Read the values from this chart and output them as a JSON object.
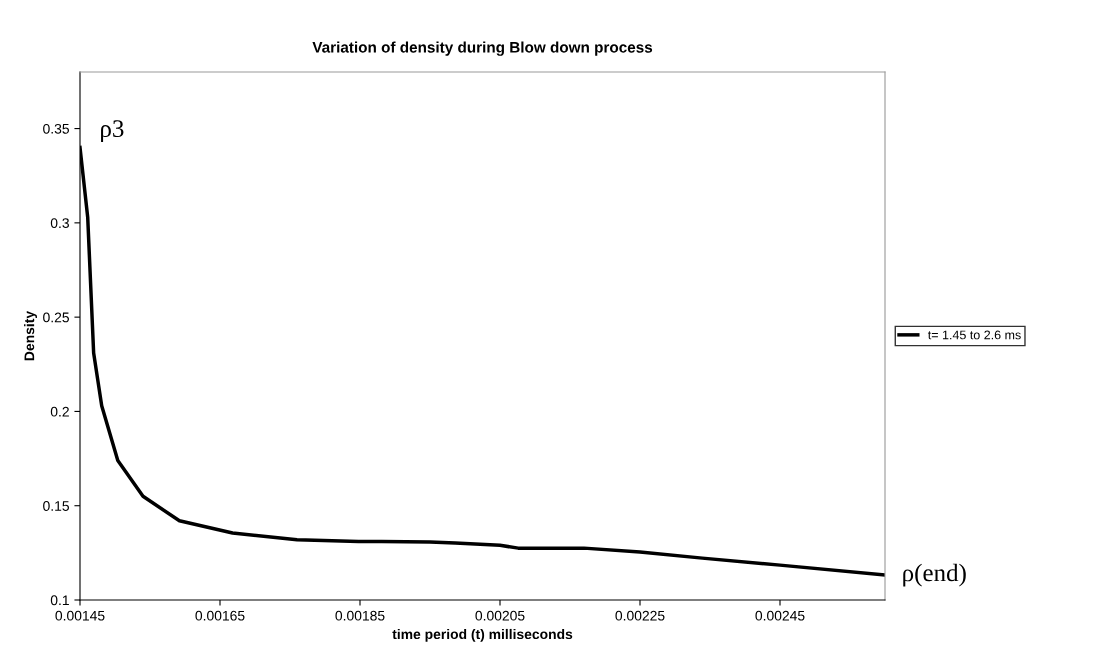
{
  "chart_data": {
    "type": "line",
    "title": "Variation of density during Blow down process",
    "xlabel": "time period (t) milliseconds",
    "ylabel": "Density",
    "x": [
      0.00145,
      0.001461,
      0.0014695,
      0.001481,
      0.001504,
      0.00154,
      0.001592,
      0.001668,
      0.00176,
      0.001848,
      0.001881,
      0.00195,
      0.001986,
      0.00205,
      0.002076,
      0.00217,
      0.00225,
      0.002339,
      0.00245,
      0.0026
    ],
    "series": [
      {
        "name": "t= 1.45 to 2.6 ms",
        "color": "#000000",
        "values": [
          0.34,
          0.303,
          0.231,
          0.203,
          0.174,
          0.155,
          0.142,
          0.1355,
          0.132,
          0.131,
          0.131,
          0.1307,
          0.1302,
          0.129,
          0.1275,
          0.1275,
          0.1254,
          0.1222,
          0.1185,
          0.1132
        ]
      }
    ],
    "xlim": [
      0.00145,
      0.0026
    ],
    "xticks": [
      0.00145,
      0.00165,
      0.00185,
      0.00205,
      0.00225,
      0.00245
    ],
    "ylim": [
      0.1,
      0.38
    ],
    "yticks": [
      0.1,
      0.15,
      0.2,
      0.25,
      0.3,
      0.35
    ],
    "annotations": [
      {
        "text": "ρ3",
        "x": 0.00145,
        "y": 0.34
      },
      {
        "text": "ρ(end)",
        "x": 0.0026,
        "y": 0.1132
      }
    ],
    "legend": "right",
    "grid": false,
    "marker": "none",
    "line_style": "solid"
  }
}
